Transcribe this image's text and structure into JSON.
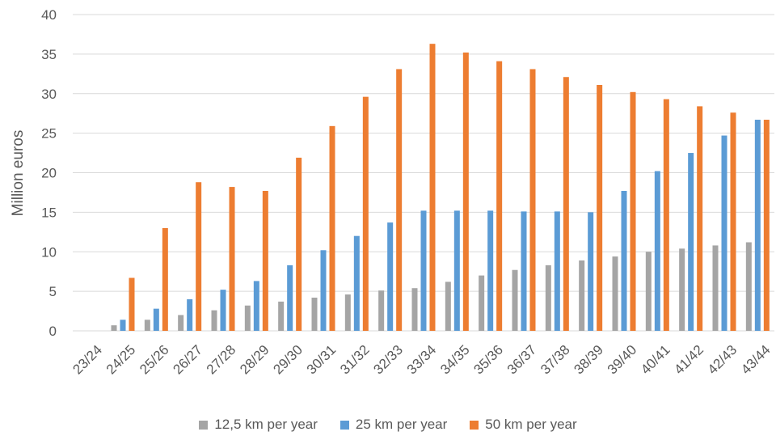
{
  "chart_data": {
    "type": "bar",
    "title": "",
    "xlabel": "",
    "ylabel": "Million euros",
    "ylim": [
      0,
      40
    ],
    "yticks": [
      "0",
      "5",
      "10",
      "15",
      "20",
      "25",
      "30",
      "35",
      "40"
    ],
    "grid": true,
    "legend_position": "bottom",
    "categories": [
      "23/24",
      "24/25",
      "25/26",
      "26/27",
      "27/28",
      "28/29",
      "29/30",
      "30/31",
      "31/32",
      "32/33",
      "33/34",
      "34/35",
      "35/36",
      "36/37",
      "37/38",
      "38/39",
      "39/40",
      "40/41",
      "41/42",
      "42/43",
      "43/44"
    ],
    "series": [
      {
        "name": "12,5 km per year",
        "color": "#a5a5a5",
        "values": [
          0,
          0.7,
          1.4,
          2.0,
          2.6,
          3.2,
          3.7,
          4.2,
          4.6,
          5.1,
          5.4,
          6.2,
          7.0,
          7.7,
          8.3,
          8.9,
          9.4,
          10.0,
          10.4,
          10.8,
          11.2
        ]
      },
      {
        "name": "25 km per year",
        "color": "#5b9bd5",
        "values": [
          0,
          1.4,
          2.8,
          4.0,
          5.2,
          6.3,
          8.3,
          10.2,
          12.0,
          13.7,
          15.2,
          15.2,
          15.2,
          15.1,
          15.1,
          15.0,
          17.7,
          20.2,
          22.5,
          24.7,
          26.7
        ]
      },
      {
        "name": "50 km per year",
        "color": "#ed7d31",
        "values": [
          0,
          6.7,
          13.0,
          18.8,
          18.2,
          17.7,
          21.9,
          25.9,
          29.6,
          33.1,
          36.3,
          35.2,
          34.1,
          33.1,
          32.1,
          31.1,
          30.2,
          29.3,
          28.4,
          27.6,
          26.7
        ]
      }
    ]
  }
}
